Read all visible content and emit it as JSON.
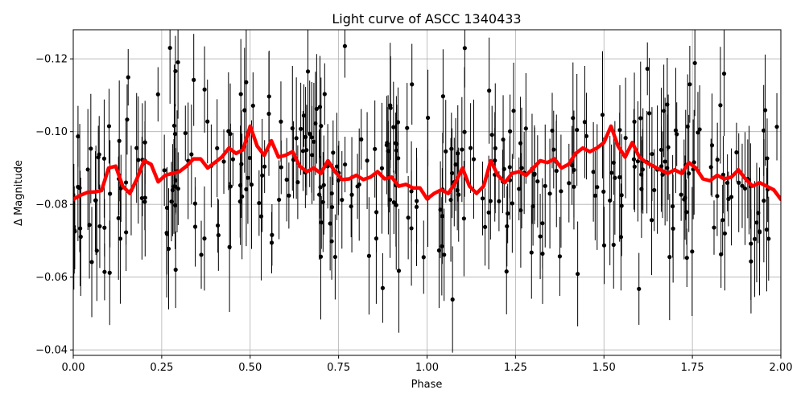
{
  "chart_data": {
    "type": "scatter",
    "title": "Light curve of ASCC 1340433",
    "xlabel": "Phase",
    "ylabel": "Δ Magnitude",
    "xlim": [
      0.0,
      2.0
    ],
    "ylim": [
      -0.0385,
      -0.128
    ],
    "y_inverted": true,
    "grid": true,
    "xticks": [
      0.0,
      0.25,
      0.5,
      0.75,
      1.0,
      1.25,
      1.5,
      1.75,
      2.0
    ],
    "xtick_labels": [
      "0.00",
      "0.25",
      "0.50",
      "0.75",
      "1.00",
      "1.25",
      "1.50",
      "1.75",
      "2.00"
    ],
    "yticks": [
      -0.12,
      -0.1,
      -0.08,
      -0.06,
      -0.04
    ],
    "ytick_labels": [
      "−0.12",
      "−0.10",
      "−0.08",
      "−0.06",
      "−0.04"
    ],
    "series": [
      {
        "kind": "points-with-errorbars",
        "color": "#000000",
        "n_points": 360,
        "mean_magnitude": -0.087,
        "scatter_sigma": 0.013,
        "typical_error": 0.012
      },
      {
        "kind": "line",
        "color": "#ff0000",
        "x": [
          0.0,
          0.02,
          0.04,
          0.06,
          0.08,
          0.1,
          0.12,
          0.14,
          0.16,
          0.18,
          0.2,
          0.22,
          0.24,
          0.26,
          0.28,
          0.3,
          0.32,
          0.34,
          0.36,
          0.38,
          0.4,
          0.42,
          0.44,
          0.46,
          0.48,
          0.5,
          0.52,
          0.54,
          0.56,
          0.58,
          0.6,
          0.62,
          0.64,
          0.66,
          0.68,
          0.7,
          0.72,
          0.74,
          0.76,
          0.78,
          0.8,
          0.82,
          0.84,
          0.86,
          0.88,
          0.9,
          0.92,
          0.94,
          0.96,
          0.98,
          1.0,
          1.02,
          1.04,
          1.06,
          1.08,
          1.1,
          1.12,
          1.14,
          1.16,
          1.18,
          1.2,
          1.22,
          1.24,
          1.26,
          1.28,
          1.3,
          1.32,
          1.34,
          1.36,
          1.38,
          1.4,
          1.42,
          1.44,
          1.46,
          1.48,
          1.5,
          1.52,
          1.54,
          1.56,
          1.58,
          1.6,
          1.62,
          1.64,
          1.66,
          1.68,
          1.7,
          1.72,
          1.74,
          1.76,
          1.78,
          1.8,
          1.82,
          1.84,
          1.86,
          1.88,
          1.9,
          1.92,
          1.94,
          1.96,
          1.98,
          2.0
        ],
        "y": [
          -0.0814,
          -0.0825,
          -0.0833,
          -0.0834,
          -0.0838,
          -0.09,
          -0.0905,
          -0.085,
          -0.083,
          -0.087,
          -0.092,
          -0.091,
          -0.0862,
          -0.088,
          -0.0885,
          -0.089,
          -0.0905,
          -0.0925,
          -0.0925,
          -0.09,
          -0.0915,
          -0.093,
          -0.0955,
          -0.094,
          -0.095,
          -0.1015,
          -0.096,
          -0.0935,
          -0.0975,
          -0.093,
          -0.0935,
          -0.0945,
          -0.0905,
          -0.089,
          -0.09,
          -0.0885,
          -0.092,
          -0.089,
          -0.0868,
          -0.087,
          -0.088,
          -0.0868,
          -0.0875,
          -0.089,
          -0.087,
          -0.0875,
          -0.085,
          -0.0855,
          -0.0845,
          -0.0845,
          -0.0815,
          -0.083,
          -0.084,
          -0.083,
          -0.086,
          -0.09,
          -0.085,
          -0.083,
          -0.085,
          -0.092,
          -0.088,
          -0.086,
          -0.0885,
          -0.089,
          -0.088,
          -0.09,
          -0.092,
          -0.0915,
          -0.0925,
          -0.09,
          -0.091,
          -0.094,
          -0.0955,
          -0.0945,
          -0.0955,
          -0.097,
          -0.1015,
          -0.096,
          -0.093,
          -0.097,
          -0.093,
          -0.0915,
          -0.0905,
          -0.0895,
          -0.0885,
          -0.0895,
          -0.0885,
          -0.0915,
          -0.09,
          -0.087,
          -0.0865,
          -0.088,
          -0.087,
          -0.0875,
          -0.0895,
          -0.087,
          -0.085,
          -0.086,
          -0.085,
          -0.084,
          -0.0814
        ]
      }
    ]
  }
}
